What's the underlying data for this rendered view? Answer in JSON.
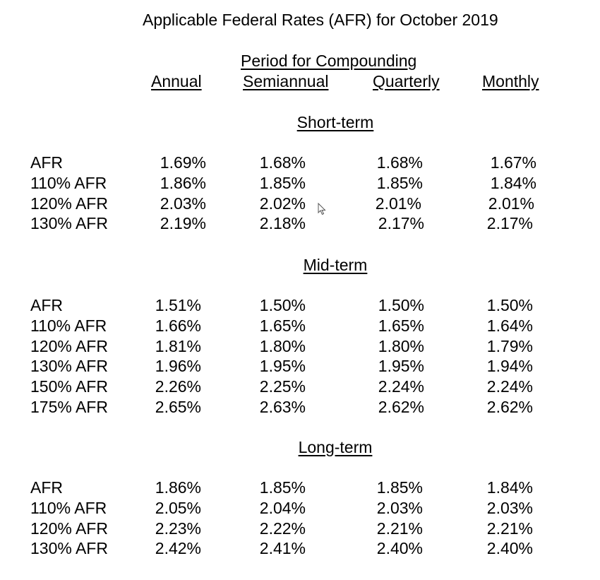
{
  "title": "Applicable Federal Rates (AFR) for October 2019",
  "period_heading": "Period for Compounding",
  "columns": [
    "Annual",
    "Semiannual",
    "Quarterly",
    "Monthly"
  ],
  "sections": [
    {
      "name": "Short-term",
      "rows": [
        {
          "label": "AFR",
          "values": [
            "1.69%",
            "1.68%",
            "1.68%",
            "1.67%"
          ]
        },
        {
          "label": "110% AFR",
          "values": [
            "1.86%",
            "1.85%",
            "1.85%",
            "1.84%"
          ]
        },
        {
          "label": "120% AFR",
          "values": [
            "2.03%",
            "2.02%",
            "2.01%",
            "2.01%"
          ]
        },
        {
          "label": "130% AFR",
          "values": [
            "2.19%",
            "2.18%",
            "2.17%",
            "2.17%"
          ]
        }
      ]
    },
    {
      "name": "Mid-term",
      "rows": [
        {
          "label": "AFR",
          "values": [
            "1.51%",
            "1.50%",
            "1.50%",
            "1.50%"
          ]
        },
        {
          "label": "110% AFR",
          "values": [
            "1.66%",
            "1.65%",
            "1.65%",
            "1.64%"
          ]
        },
        {
          "label": "120% AFR",
          "values": [
            "1.81%",
            "1.80%",
            "1.80%",
            "1.79%"
          ]
        },
        {
          "label": "130% AFR",
          "values": [
            "1.96%",
            "1.95%",
            "1.95%",
            "1.94%"
          ]
        },
        {
          "label": "150% AFR",
          "values": [
            "2.26%",
            "2.25%",
            "2.24%",
            "2.24%"
          ]
        },
        {
          "label": "175% AFR",
          "values": [
            "2.65%",
            "2.63%",
            "2.62%",
            "2.62%"
          ]
        }
      ]
    },
    {
      "name": "Long-term",
      "rows": [
        {
          "label": "AFR",
          "values": [
            "1.86%",
            "1.85%",
            "1.85%",
            "1.84%"
          ]
        },
        {
          "label": "110% AFR",
          "values": [
            "2.05%",
            "2.04%",
            "2.03%",
            "2.03%"
          ]
        },
        {
          "label": "120% AFR",
          "values": [
            "2.23%",
            "2.22%",
            "2.21%",
            "2.21%"
          ]
        },
        {
          "label": "130% AFR",
          "values": [
            "2.42%",
            "2.41%",
            "2.40%",
            "2.40%"
          ]
        }
      ]
    }
  ],
  "cursor_icon": "mouse-pointer-icon"
}
